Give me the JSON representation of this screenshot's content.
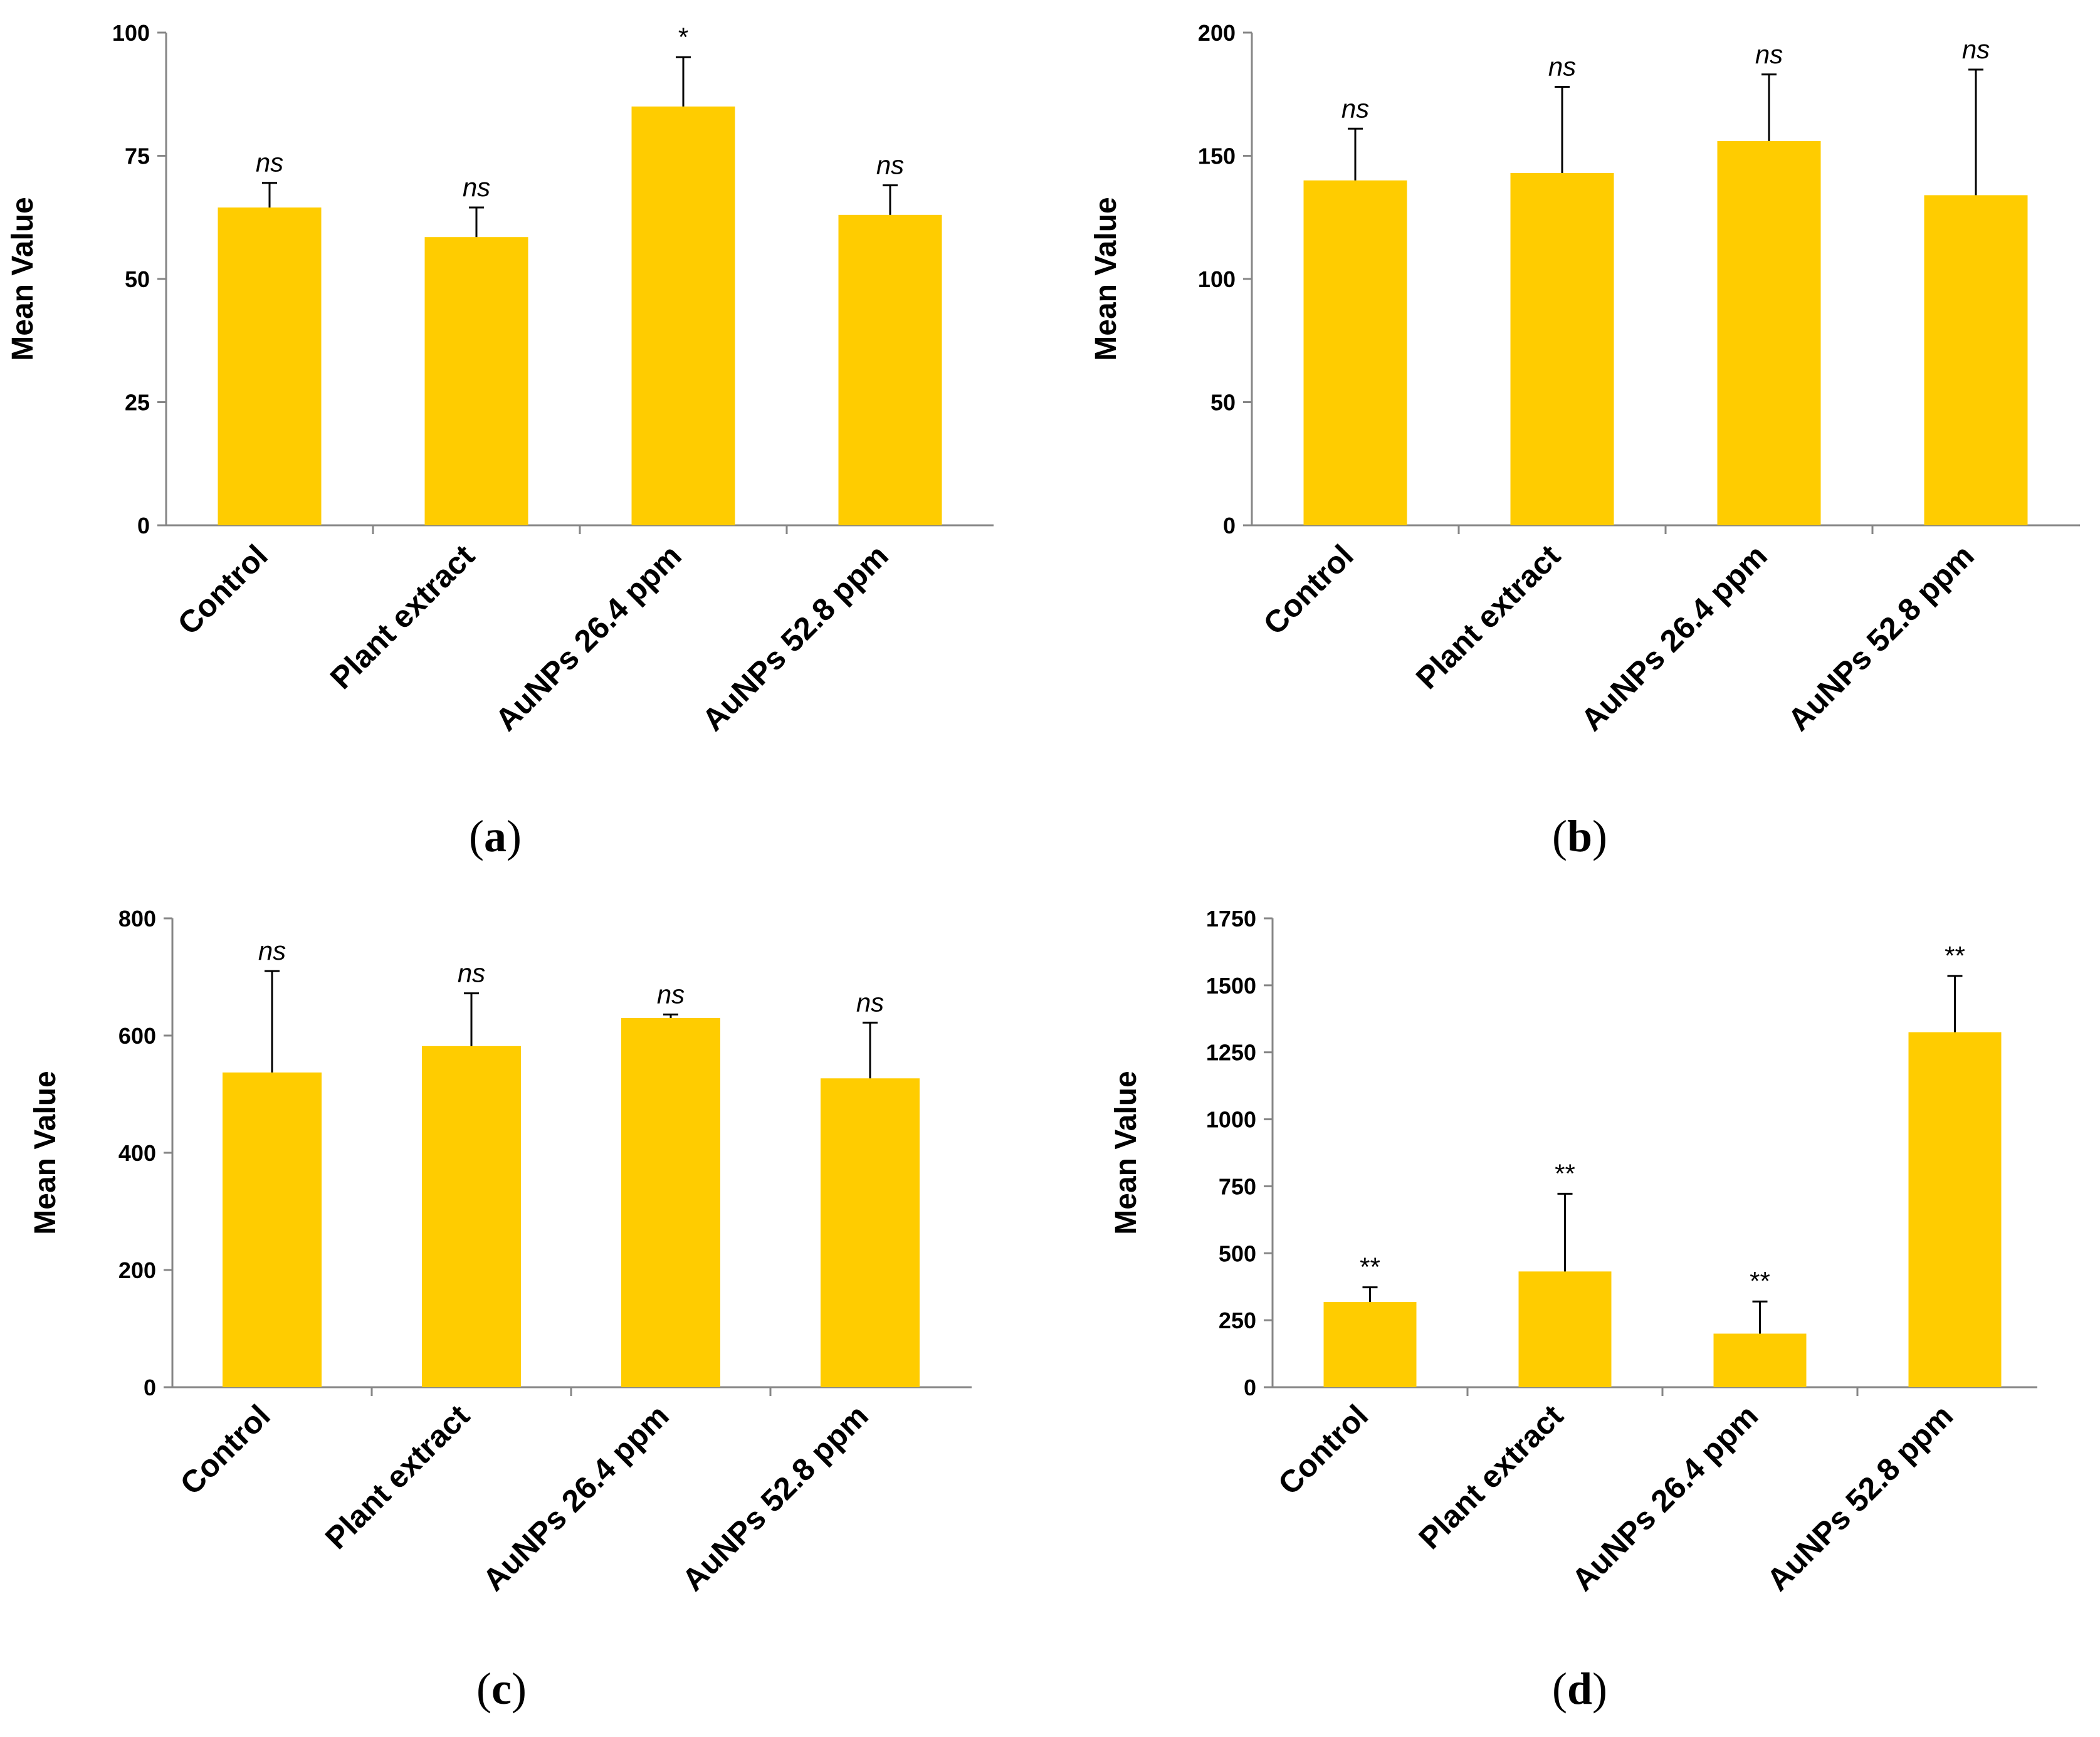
{
  "figure": {
    "bar_color": "#FFCC00",
    "axis_color": "#868686",
    "error_color": "#000000"
  },
  "chart_data": [
    {
      "type": "bar",
      "panel_label": "a",
      "ylabel": "Mean Value",
      "xlabel": "",
      "ylim": [
        0,
        100
      ],
      "yticks": [
        "0",
        "25",
        "50",
        "75",
        "100"
      ],
      "categories": [
        "Control",
        "Plant extract",
        "AuNPs 26.4 ppm",
        "AuNPs 52.8 ppm"
      ],
      "values": [
        64.5,
        58.5,
        85,
        63
      ],
      "errors": [
        5,
        6,
        10,
        6
      ],
      "significance": [
        "ns",
        "ns",
        "*",
        "ns"
      ]
    },
    {
      "type": "bar",
      "panel_label": "b",
      "ylabel": "Mean Value",
      "xlabel": "",
      "ylim": [
        0,
        200
      ],
      "yticks": [
        "0",
        "50",
        "100",
        "150",
        "200"
      ],
      "categories": [
        "Control",
        "Plant extract",
        "AuNPs 26.4 ppm",
        "AuNPs 52.8 ppm"
      ],
      "values": [
        140,
        143,
        156,
        134
      ],
      "errors": [
        21,
        35,
        27,
        51
      ],
      "significance": [
        "ns",
        "ns",
        "ns",
        "ns"
      ]
    },
    {
      "type": "bar",
      "panel_label": "c",
      "ylabel": "Mean Value",
      "xlabel": "",
      "ylim": [
        0,
        800
      ],
      "yticks": [
        "0",
        "200",
        "400",
        "600",
        "800"
      ],
      "categories": [
        "Control",
        "Plant extract",
        "AuNPs 26.4 ppm",
        "AuNPs 52.8 ppm"
      ],
      "values": [
        537,
        582,
        630,
        527
      ],
      "errors": [
        173,
        90,
        6,
        95
      ],
      "significance": [
        "ns",
        "ns",
        "ns",
        "ns"
      ]
    },
    {
      "type": "bar",
      "panel_label": "d",
      "ylabel": "Mean Value",
      "xlabel": "",
      "ylim": [
        0,
        1750
      ],
      "yticks": [
        "0",
        "250",
        "500",
        "750",
        "1000",
        "1250",
        "1500",
        "1750"
      ],
      "categories": [
        "Control",
        "Plant extract",
        "AuNPs 26.4 ppm",
        "AuNPs 52.8 ppm"
      ],
      "values": [
        318,
        432,
        200,
        1325
      ],
      "errors": [
        55,
        290,
        120,
        210
      ],
      "significance": [
        "**",
        "**",
        "**",
        "**"
      ]
    }
  ]
}
